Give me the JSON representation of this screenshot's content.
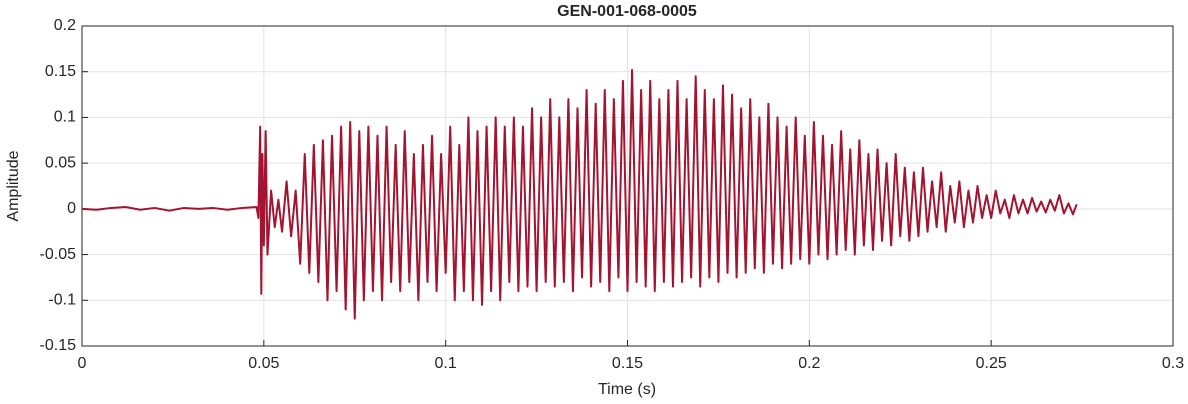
{
  "chart_data": {
    "type": "line",
    "title": "GEN-001-068-0005",
    "xlabel": "Time (s)",
    "ylabel": "Amplitude",
    "xlim": [
      0,
      0.3
    ],
    "xticks": [
      0,
      0.05,
      0.1,
      0.15,
      0.2,
      0.25,
      0.3
    ],
    "ylim": [
      -0.15,
      0.2
    ],
    "yticks": [
      -0.15,
      -0.1,
      -0.05,
      0,
      0.05,
      0.1,
      0.15,
      0.2
    ],
    "grid": true,
    "series": [
      {
        "color": "#a2142f",
        "x": [
          0,
          0.004,
          0.008,
          0.012,
          0.016,
          0.02,
          0.024,
          0.028,
          0.032,
          0.036,
          0.04,
          0.044,
          0.048,
          0.0485,
          0.049,
          0.0493,
          0.0496,
          0.05,
          0.0505,
          0.051,
          0.052,
          0.053,
          0.054,
          0.055,
          0.05625,
          0.0575,
          0.05875,
          0.06,
          0.06125,
          0.0625,
          0.06375,
          0.065,
          0.06625,
          0.0675,
          0.06875,
          0.07,
          0.07125,
          0.0725,
          0.07375,
          0.075,
          0.07625,
          0.0775,
          0.07875,
          0.08,
          0.08125,
          0.0825,
          0.08375,
          0.085,
          0.08625,
          0.0875,
          0.08875,
          0.09,
          0.09125,
          0.0925,
          0.09375,
          0.095,
          0.09625,
          0.0975,
          0.09875,
          0.1,
          0.10125,
          0.1025,
          0.10375,
          0.105,
          0.10625,
          0.1075,
          0.10875,
          0.11,
          0.11125,
          0.1125,
          0.11375,
          0.115,
          0.11625,
          0.1175,
          0.11875,
          0.12,
          0.12125,
          0.1225,
          0.12375,
          0.125,
          0.12625,
          0.1275,
          0.12875,
          0.13,
          0.13125,
          0.1325,
          0.13375,
          0.135,
          0.13625,
          0.1375,
          0.13875,
          0.14,
          0.14125,
          0.1425,
          0.14375,
          0.145,
          0.14625,
          0.1475,
          0.14875,
          0.15,
          0.15125,
          0.1525,
          0.15375,
          0.155,
          0.15625,
          0.1575,
          0.15875,
          0.16,
          0.16125,
          0.1625,
          0.16375,
          0.165,
          0.16625,
          0.1675,
          0.16875,
          0.17,
          0.17125,
          0.1725,
          0.17375,
          0.175,
          0.17625,
          0.1775,
          0.17875,
          0.18,
          0.18125,
          0.1825,
          0.18375,
          0.185,
          0.18625,
          0.1875,
          0.18875,
          0.19,
          0.19125,
          0.1925,
          0.19375,
          0.195,
          0.19625,
          0.1975,
          0.19875,
          0.2,
          0.20125,
          0.2025,
          0.20375,
          0.205,
          0.20625,
          0.2075,
          0.20875,
          0.21,
          0.21125,
          0.2125,
          0.21375,
          0.215,
          0.21625,
          0.2175,
          0.21875,
          0.22,
          0.22125,
          0.2225,
          0.22375,
          0.225,
          0.22625,
          0.2275,
          0.22875,
          0.23,
          0.23125,
          0.2325,
          0.23375,
          0.235,
          0.23625,
          0.2375,
          0.23875,
          0.24,
          0.24125,
          0.2425,
          0.24375,
          0.245,
          0.24625,
          0.2475,
          0.24875,
          0.25,
          0.25125,
          0.2525,
          0.25375,
          0.255,
          0.25625,
          0.2575,
          0.25875,
          0.26,
          0.26125,
          0.2625,
          0.26375,
          0.265,
          0.26625,
          0.2675,
          0.26875,
          0.27,
          0.27125,
          0.2725,
          0.2735
        ],
        "values": [
          0,
          -0.001,
          0.001,
          0.002,
          -0.001,
          0.001,
          -0.002,
          0.001,
          0,
          0.001,
          -0.001,
          0.001,
          0.002,
          -0.01,
          0.09,
          -0.093,
          0.06,
          -0.04,
          0.085,
          -0.05,
          0.02,
          -0.02,
          0.01,
          -0.025,
          0.03,
          -0.03,
          0.02,
          -0.06,
          0.06,
          -0.07,
          0.07,
          -0.08,
          0.075,
          -0.1,
          0.08,
          -0.09,
          0.09,
          -0.11,
          0.095,
          -0.12,
          0.085,
          -0.1,
          0.09,
          -0.09,
          0.08,
          -0.1,
          0.09,
          -0.08,
          0.07,
          -0.09,
          0.085,
          -0.08,
          0.06,
          -0.1,
          0.07,
          -0.08,
          0.08,
          -0.09,
          0.06,
          -0.07,
          0.09,
          -0.1,
          0.07,
          -0.09,
          0.1,
          -0.1,
          0.085,
          -0.105,
          0.09,
          -0.09,
          0.1,
          -0.1,
          0.09,
          -0.08,
          0.1,
          -0.09,
          0.09,
          -0.085,
          0.11,
          -0.09,
          0.1,
          -0.08,
          0.12,
          -0.085,
          0.1,
          -0.08,
          0.12,
          -0.09,
          0.11,
          -0.075,
          0.13,
          -0.085,
          0.115,
          -0.08,
          0.13,
          -0.09,
          0.12,
          -0.075,
          0.14,
          -0.09,
          0.152,
          -0.08,
          0.13,
          -0.085,
          0.14,
          -0.09,
          0.12,
          -0.08,
          0.13,
          -0.085,
          0.14,
          -0.08,
          0.12,
          -0.075,
          0.145,
          -0.085,
          0.13,
          -0.075,
          0.12,
          -0.08,
          0.135,
          -0.07,
          0.125,
          -0.075,
          0.11,
          -0.07,
          0.12,
          -0.065,
          0.1,
          -0.07,
          0.115,
          -0.06,
          0.1,
          -0.065,
          0.09,
          -0.06,
          0.1,
          -0.055,
          0.08,
          -0.06,
          0.095,
          -0.05,
          0.08,
          -0.055,
          0.07,
          -0.05,
          0.085,
          -0.045,
          0.065,
          -0.05,
          0.075,
          -0.04,
          0.06,
          -0.045,
          0.065,
          -0.035,
          0.05,
          -0.04,
          0.06,
          -0.03,
          0.045,
          -0.035,
          0.04,
          -0.03,
          0.045,
          -0.025,
          0.03,
          -0.02,
          0.04,
          -0.025,
          0.025,
          -0.015,
          0.03,
          -0.02,
          0.02,
          -0.015,
          0.025,
          -0.01,
          0.015,
          -0.01,
          0.02,
          -0.005,
          0.01,
          -0.01,
          0.015,
          -0.005,
          0.01,
          -0.005,
          0.012,
          -0.003,
          0.008,
          -0.004,
          0.01,
          -0.002,
          0.015,
          -0.005,
          0.006,
          -0.006,
          0.005
        ]
      }
    ]
  }
}
